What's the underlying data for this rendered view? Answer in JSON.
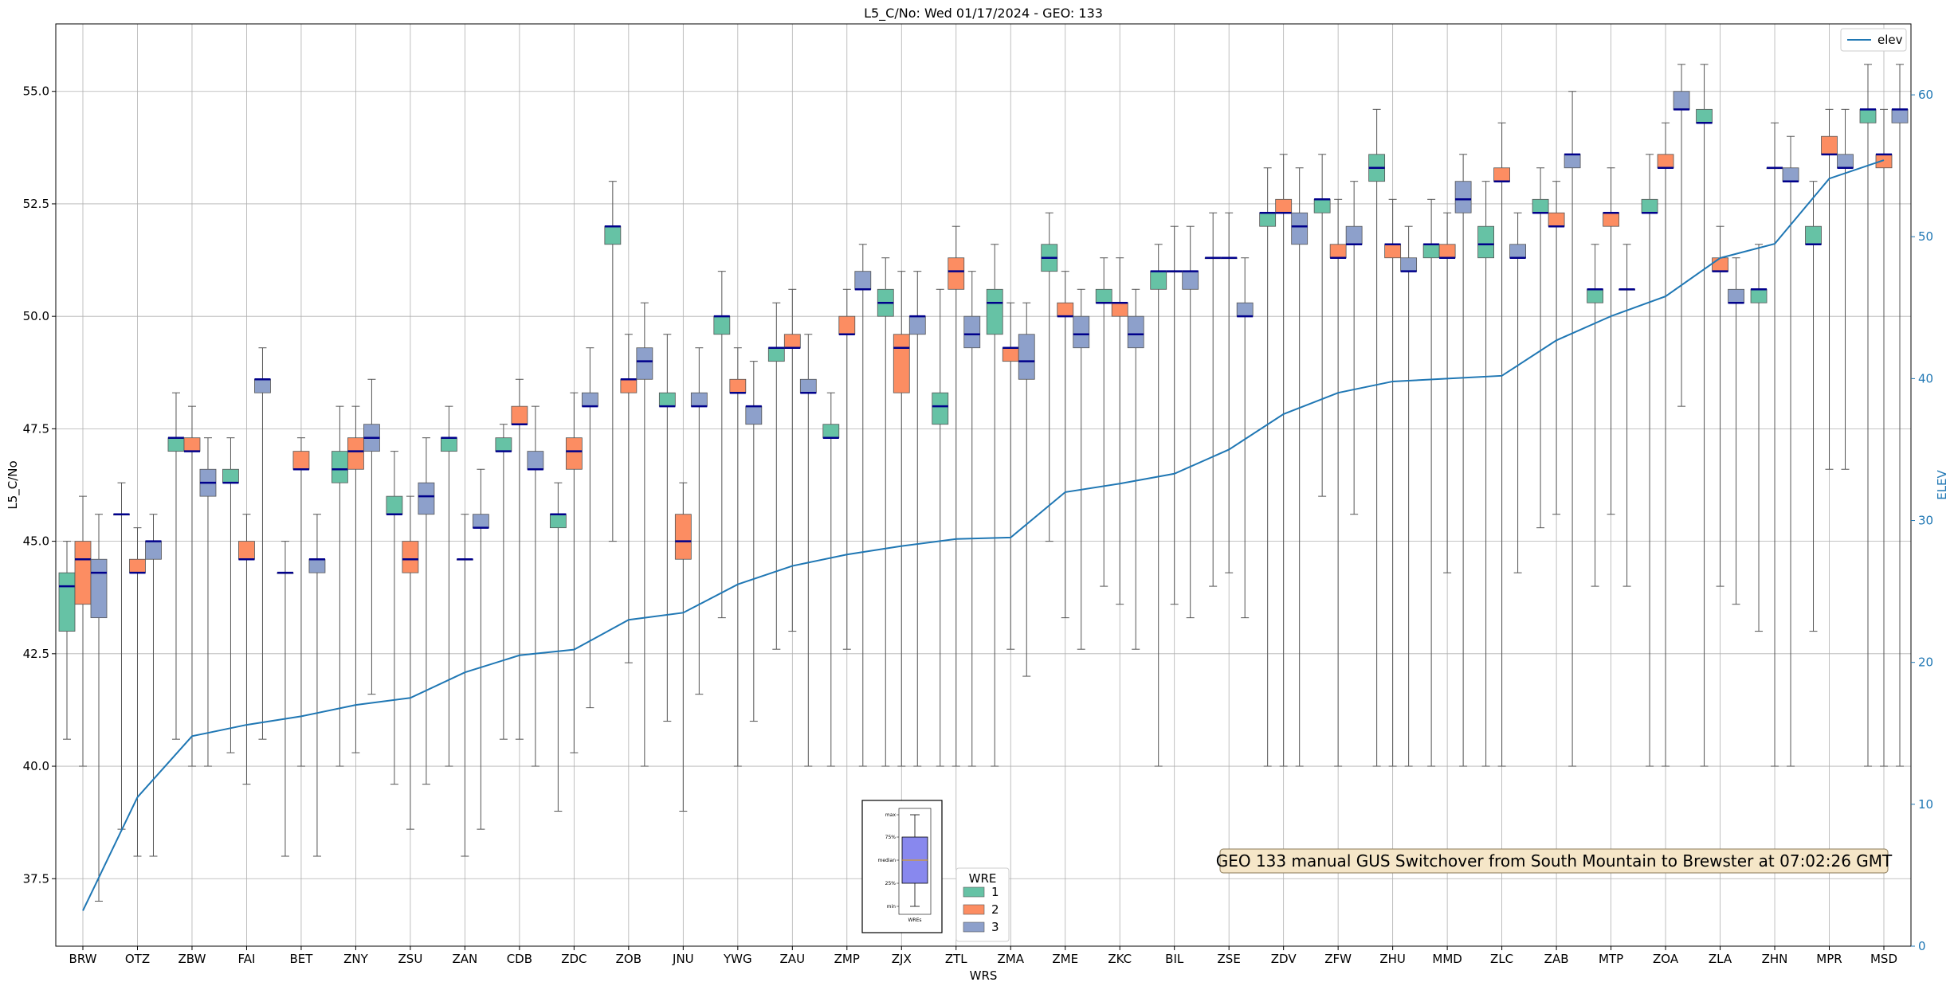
{
  "chart_data": {
    "type": "box",
    "title": "L5_C/No: Wed 01/17/2024 - GEO: 133",
    "xlabel": "WRS",
    "ylabel": "L5_C/No",
    "ylabel_right": "ELEV",
    "ylim": [
      36.0,
      56.5
    ],
    "ylim_right": [
      0,
      65
    ],
    "yticks": [
      "37.5",
      "40.0",
      "42.5",
      "45.0",
      "47.5",
      "50.0",
      "52.5",
      "55.0"
    ],
    "yticks_right": [
      "0",
      "10",
      "20",
      "30",
      "40",
      "50",
      "60"
    ],
    "grid": true,
    "categories": [
      "BRW",
      "OTZ",
      "ZBW",
      "FAI",
      "BET",
      "ZNY",
      "ZSU",
      "ZAN",
      "CDB",
      "ZDC",
      "ZOB",
      "JNU",
      "YWG",
      "ZAU",
      "ZMP",
      "ZJX",
      "ZTL",
      "ZMA",
      "ZME",
      "ZKC",
      "BIL",
      "ZSE",
      "ZDV",
      "ZFW",
      "ZHU",
      "MMD",
      "ZLC",
      "ZAB",
      "MTP",
      "ZOA",
      "ZLA",
      "ZHN",
      "MPR",
      "MSD"
    ],
    "box_legend": {
      "title": "WRE",
      "entries": [
        "1",
        "2",
        "3"
      ]
    },
    "box_colors": [
      "#66c2a5",
      "#fc8d62",
      "#8da0cb"
    ],
    "median_color": "#00008b",
    "elev_color": "#1f77b4",
    "line_legend": "elev",
    "elev": [
      2.5,
      10.5,
      14.8,
      15.6,
      16.2,
      17.0,
      17.5,
      19.3,
      20.5,
      20.9,
      23.0,
      23.5,
      25.5,
      26.8,
      27.6,
      28.2,
      28.7,
      28.8,
      32.0,
      32.6,
      33.3,
      35.0,
      37.5,
      39.0,
      39.8,
      40.0,
      40.2,
      42.7,
      44.4,
      45.8,
      48.5,
      49.5,
      54.1,
      55.4
    ],
    "boxes": [
      [
        {
          "whislo": 40.6,
          "q1": 43.0,
          "med": 44.0,
          "q3": 44.3,
          "whishi": 45.0
        },
        {
          "whislo": 40.0,
          "q1": 43.6,
          "med": 44.6,
          "q3": 45.0,
          "whishi": 46.0
        },
        {
          "whislo": 37.0,
          "q1": 43.3,
          "med": 44.3,
          "q3": 44.6,
          "whishi": 45.6
        }
      ],
      [
        {
          "whislo": 38.6,
          "q1": 45.6,
          "med": 45.6,
          "q3": 45.6,
          "whishi": 46.3
        },
        {
          "whislo": 38.0,
          "q1": 44.3,
          "med": 44.3,
          "q3": 44.6,
          "whishi": 45.3
        },
        {
          "whislo": 38.0,
          "q1": 44.6,
          "med": 45.0,
          "q3": 45.0,
          "whishi": 45.6
        }
      ],
      [
        {
          "whislo": 40.6,
          "q1": 47.0,
          "med": 47.3,
          "q3": 47.3,
          "whishi": 48.3
        },
        {
          "whislo": 40.0,
          "q1": 47.0,
          "med": 47.0,
          "q3": 47.3,
          "whishi": 48.0
        },
        {
          "whislo": 40.0,
          "q1": 46.0,
          "med": 46.3,
          "q3": 46.6,
          "whishi": 47.3
        }
      ],
      [
        {
          "whislo": 40.3,
          "q1": 46.3,
          "med": 46.3,
          "q3": 46.6,
          "whishi": 47.3
        },
        {
          "whislo": 39.6,
          "q1": 44.6,
          "med": 44.6,
          "q3": 45.0,
          "whishi": 45.6
        },
        {
          "whislo": 40.6,
          "q1": 48.3,
          "med": 48.6,
          "q3": 48.6,
          "whishi": 49.3
        }
      ],
      [
        {
          "whislo": 38.0,
          "q1": 44.3,
          "med": 44.3,
          "q3": 44.3,
          "whishi": 45.0
        },
        {
          "whislo": 40.0,
          "q1": 46.6,
          "med": 46.6,
          "q3": 47.0,
          "whishi": 47.3
        },
        {
          "whislo": 38.0,
          "q1": 44.3,
          "med": 44.6,
          "q3": 44.6,
          "whishi": 45.6
        }
      ],
      [
        {
          "whislo": 40.0,
          "q1": 46.3,
          "med": 46.6,
          "q3": 47.0,
          "whishi": 48.0
        },
        {
          "whislo": 40.3,
          "q1": 46.6,
          "med": 47.0,
          "q3": 47.3,
          "whishi": 48.0
        },
        {
          "whislo": 41.6,
          "q1": 47.0,
          "med": 47.3,
          "q3": 47.6,
          "whishi": 48.6
        }
      ],
      [
        {
          "whislo": 39.6,
          "q1": 45.6,
          "med": 45.6,
          "q3": 46.0,
          "whishi": 47.0
        },
        {
          "whislo": 38.6,
          "q1": 44.3,
          "med": 44.6,
          "q3": 45.0,
          "whishi": 46.0
        },
        {
          "whislo": 39.6,
          "q1": 45.6,
          "med": 46.0,
          "q3": 46.3,
          "whishi": 47.3
        }
      ],
      [
        {
          "whislo": 40.0,
          "q1": 47.0,
          "med": 47.3,
          "q3": 47.3,
          "whishi": 48.0
        },
        {
          "whislo": 38.0,
          "q1": 44.6,
          "med": 44.6,
          "q3": 44.6,
          "whishi": 45.6
        },
        {
          "whislo": 38.6,
          "q1": 45.3,
          "med": 45.3,
          "q3": 45.6,
          "whishi": 46.6
        }
      ],
      [
        {
          "whislo": 40.6,
          "q1": 47.0,
          "med": 47.0,
          "q3": 47.3,
          "whishi": 47.6
        },
        {
          "whislo": 40.6,
          "q1": 47.6,
          "med": 47.6,
          "q3": 48.0,
          "whishi": 48.6
        },
        {
          "whislo": 40.0,
          "q1": 46.6,
          "med": 46.6,
          "q3": 47.0,
          "whishi": 48.0
        }
      ],
      [
        {
          "whislo": 39.0,
          "q1": 45.3,
          "med": 45.6,
          "q3": 45.6,
          "whishi": 46.3
        },
        {
          "whislo": 40.3,
          "q1": 46.6,
          "med": 47.0,
          "q3": 47.3,
          "whishi": 48.3
        },
        {
          "whislo": 41.3,
          "q1": 48.0,
          "med": 48.0,
          "q3": 48.3,
          "whishi": 49.3
        }
      ],
      [
        {
          "whislo": 45.0,
          "q1": 51.6,
          "med": 52.0,
          "q3": 52.0,
          "whishi": 53.0
        },
        {
          "whislo": 42.3,
          "q1": 48.3,
          "med": 48.6,
          "q3": 48.6,
          "whishi": 49.6
        },
        {
          "whislo": 40.0,
          "q1": 48.6,
          "med": 49.0,
          "q3": 49.3,
          "whishi": 50.3
        }
      ],
      [
        {
          "whislo": 41.0,
          "q1": 48.0,
          "med": 48.0,
          "q3": 48.3,
          "whishi": 49.6
        },
        {
          "whislo": 39.0,
          "q1": 44.6,
          "med": 45.0,
          "q3": 45.6,
          "whishi": 46.3
        },
        {
          "whislo": 41.6,
          "q1": 48.0,
          "med": 48.0,
          "q3": 48.3,
          "whishi": 49.3
        }
      ],
      [
        {
          "whislo": 43.3,
          "q1": 49.6,
          "med": 50.0,
          "q3": 50.0,
          "whishi": 51.0
        },
        {
          "whislo": 40.0,
          "q1": 48.3,
          "med": 48.3,
          "q3": 48.6,
          "whishi": 49.3
        },
        {
          "whislo": 41.0,
          "q1": 47.6,
          "med": 48.0,
          "q3": 48.0,
          "whishi": 49.0
        }
      ],
      [
        {
          "whislo": 42.6,
          "q1": 49.0,
          "med": 49.3,
          "q3": 49.3,
          "whishi": 50.3
        },
        {
          "whislo": 43.0,
          "q1": 49.3,
          "med": 49.3,
          "q3": 49.6,
          "whishi": 50.6
        },
        {
          "whislo": 40.0,
          "q1": 48.3,
          "med": 48.3,
          "q3": 48.6,
          "whishi": 49.6
        }
      ],
      [
        {
          "whislo": 40.0,
          "q1": 47.3,
          "med": 47.3,
          "q3": 47.6,
          "whishi": 48.3
        },
        {
          "whislo": 42.6,
          "q1": 49.6,
          "med": 49.6,
          "q3": 50.0,
          "whishi": 50.6
        },
        {
          "whislo": 40.0,
          "q1": 50.6,
          "med": 50.6,
          "q3": 51.0,
          "whishi": 51.6
        }
      ],
      [
        {
          "whislo": 40.0,
          "q1": 50.0,
          "med": 50.3,
          "q3": 50.6,
          "whishi": 51.3
        },
        {
          "whislo": 40.0,
          "q1": 48.3,
          "med": 49.3,
          "q3": 49.6,
          "whishi": 51.0
        },
        {
          "whislo": 40.0,
          "q1": 49.6,
          "med": 50.0,
          "q3": 50.0,
          "whishi": 51.0
        }
      ],
      [
        {
          "whislo": 40.0,
          "q1": 47.6,
          "med": 48.0,
          "q3": 48.3,
          "whishi": 50.6
        },
        {
          "whislo": 40.0,
          "q1": 50.6,
          "med": 51.0,
          "q3": 51.3,
          "whishi": 52.0
        },
        {
          "whislo": 40.0,
          "q1": 49.3,
          "med": 49.6,
          "q3": 50.0,
          "whishi": 51.0
        }
      ],
      [
        {
          "whislo": 40.0,
          "q1": 49.6,
          "med": 50.3,
          "q3": 50.6,
          "whishi": 51.6
        },
        {
          "whislo": 42.6,
          "q1": 49.0,
          "med": 49.3,
          "q3": 49.3,
          "whishi": 50.3
        },
        {
          "whislo": 42.0,
          "q1": 48.6,
          "med": 49.0,
          "q3": 49.6,
          "whishi": 50.3
        }
      ],
      [
        {
          "whislo": 45.0,
          "q1": 51.0,
          "med": 51.3,
          "q3": 51.6,
          "whishi": 52.3
        },
        {
          "whislo": 43.3,
          "q1": 50.0,
          "med": 50.0,
          "q3": 50.3,
          "whishi": 51.0
        },
        {
          "whislo": 42.6,
          "q1": 49.3,
          "med": 49.6,
          "q3": 50.0,
          "whishi": 50.6
        }
      ],
      [
        {
          "whislo": 44.0,
          "q1": 50.3,
          "med": 50.3,
          "q3": 50.6,
          "whishi": 51.3
        },
        {
          "whislo": 43.6,
          "q1": 50.0,
          "med": 50.3,
          "q3": 50.3,
          "whishi": 51.3
        },
        {
          "whislo": 42.6,
          "q1": 49.3,
          "med": 49.6,
          "q3": 50.0,
          "whishi": 50.6
        }
      ],
      [
        {
          "whislo": 40.0,
          "q1": 50.6,
          "med": 51.0,
          "q3": 51.0,
          "whishi": 51.6
        },
        {
          "whislo": 43.6,
          "q1": 51.0,
          "med": 51.0,
          "q3": 51.0,
          "whishi": 52.0
        },
        {
          "whislo": 43.3,
          "q1": 50.6,
          "med": 51.0,
          "q3": 51.0,
          "whishi": 52.0
        }
      ],
      [
        {
          "whislo": 44.0,
          "q1": 51.3,
          "med": 51.3,
          "q3": 51.3,
          "whishi": 52.3
        },
        {
          "whislo": 44.3,
          "q1": 51.3,
          "med": 51.3,
          "q3": 51.3,
          "whishi": 52.3
        },
        {
          "whislo": 43.3,
          "q1": 50.0,
          "med": 50.0,
          "q3": 50.3,
          "whishi": 51.3
        }
      ],
      [
        {
          "whislo": 40.0,
          "q1": 52.0,
          "med": 52.3,
          "q3": 52.3,
          "whishi": 53.3
        },
        {
          "whislo": 40.0,
          "q1": 52.3,
          "med": 52.3,
          "q3": 52.6,
          "whishi": 53.6
        },
        {
          "whislo": 40.0,
          "q1": 51.6,
          "med": 52.0,
          "q3": 52.3,
          "whishi": 53.3
        }
      ],
      [
        {
          "whislo": 46.0,
          "q1": 52.3,
          "med": 52.6,
          "q3": 52.6,
          "whishi": 53.6
        },
        {
          "whislo": 40.0,
          "q1": 51.3,
          "med": 51.3,
          "q3": 51.6,
          "whishi": 52.6
        },
        {
          "whislo": 45.6,
          "q1": 51.6,
          "med": 51.6,
          "q3": 52.0,
          "whishi": 53.0
        }
      ],
      [
        {
          "whislo": 40.0,
          "q1": 53.0,
          "med": 53.3,
          "q3": 53.6,
          "whishi": 54.6
        },
        {
          "whislo": 40.0,
          "q1": 51.3,
          "med": 51.6,
          "q3": 51.6,
          "whishi": 52.6
        },
        {
          "whislo": 40.0,
          "q1": 51.0,
          "med": 51.0,
          "q3": 51.3,
          "whishi": 52.0
        }
      ],
      [
        {
          "whislo": 40.0,
          "q1": 51.3,
          "med": 51.6,
          "q3": 51.6,
          "whishi": 52.6
        },
        {
          "whislo": 44.3,
          "q1": 51.3,
          "med": 51.3,
          "q3": 51.6,
          "whishi": 52.3
        },
        {
          "whislo": 40.0,
          "q1": 52.3,
          "med": 52.6,
          "q3": 53.0,
          "whishi": 53.6
        }
      ],
      [
        {
          "whislo": 40.0,
          "q1": 51.3,
          "med": 51.6,
          "q3": 52.0,
          "whishi": 53.0
        },
        {
          "whislo": 40.0,
          "q1": 53.0,
          "med": 53.0,
          "q3": 53.3,
          "whishi": 54.3
        },
        {
          "whislo": 44.3,
          "q1": 51.3,
          "med": 51.3,
          "q3": 51.6,
          "whishi": 52.3
        }
      ],
      [
        {
          "whislo": 45.3,
          "q1": 52.3,
          "med": 52.3,
          "q3": 52.6,
          "whishi": 53.3
        },
        {
          "whislo": 45.6,
          "q1": 52.0,
          "med": 52.0,
          "q3": 52.3,
          "whishi": 53.0
        },
        {
          "whislo": 40.0,
          "q1": 53.3,
          "med": 53.6,
          "q3": 53.6,
          "whishi": 55.0
        }
      ],
      [
        {
          "whislo": 44.0,
          "q1": 50.3,
          "med": 50.6,
          "q3": 50.6,
          "whishi": 51.6
        },
        {
          "whislo": 45.6,
          "q1": 52.0,
          "med": 52.3,
          "q3": 52.3,
          "whishi": 53.3
        },
        {
          "whislo": 44.0,
          "q1": 50.6,
          "med": 50.6,
          "q3": 50.6,
          "whishi": 51.6
        }
      ],
      [
        {
          "whislo": 40.0,
          "q1": 52.3,
          "med": 52.3,
          "q3": 52.6,
          "whishi": 53.6
        },
        {
          "whislo": 40.0,
          "q1": 53.3,
          "med": 53.3,
          "q3": 53.6,
          "whishi": 54.3
        },
        {
          "whislo": 48.0,
          "q1": 54.6,
          "med": 54.6,
          "q3": 55.0,
          "whishi": 55.6
        }
      ],
      [
        {
          "whislo": 40.0,
          "q1": 54.3,
          "med": 54.3,
          "q3": 54.6,
          "whishi": 55.6
        },
        {
          "whislo": 44.0,
          "q1": 51.0,
          "med": 51.0,
          "q3": 51.3,
          "whishi": 52.0
        },
        {
          "whislo": 43.6,
          "q1": 50.3,
          "med": 50.3,
          "q3": 50.6,
          "whishi": 51.3
        }
      ],
      [
        {
          "whislo": 43.0,
          "q1": 50.3,
          "med": 50.6,
          "q3": 50.6,
          "whishi": 51.6
        },
        {
          "whislo": 40.0,
          "q1": 53.3,
          "med": 53.3,
          "q3": 53.3,
          "whishi": 54.3
        },
        {
          "whislo": 40.0,
          "q1": 53.0,
          "med": 53.0,
          "q3": 53.3,
          "whishi": 54.0
        }
      ],
      [
        {
          "whislo": 43.0,
          "q1": 51.6,
          "med": 51.6,
          "q3": 52.0,
          "whishi": 53.0
        },
        {
          "whislo": 46.6,
          "q1": 53.6,
          "med": 53.6,
          "q3": 54.0,
          "whishi": 54.6
        },
        {
          "whislo": 46.6,
          "q1": 53.3,
          "med": 53.3,
          "q3": 53.6,
          "whishi": 54.6
        }
      ],
      [
        {
          "whislo": 40.0,
          "q1": 54.3,
          "med": 54.6,
          "q3": 54.6,
          "whishi": 55.6
        },
        {
          "whislo": 40.0,
          "q1": 53.3,
          "med": 53.6,
          "q3": 53.6,
          "whishi": 54.6
        },
        {
          "whislo": 40.0,
          "q1": 54.3,
          "med": 54.6,
          "q3": 54.6,
          "whishi": 55.6
        }
      ]
    ],
    "annotation": "GEO 133 manual GUS Switchover from South Mountain to Brewster at 07:02:26 GMT",
    "inset_labels": [
      "max",
      "75%",
      "median",
      "25%",
      "min",
      "WREs"
    ]
  }
}
